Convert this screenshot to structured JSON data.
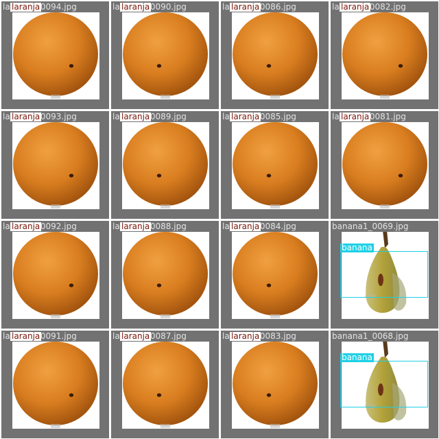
{
  "colors": {
    "tile_background": "#727272",
    "orange_label_text": "#7a1608",
    "banana_box": "#1ed0e6"
  },
  "tiles": [
    {
      "filename": "laranja1_0094.jpg",
      "label": "laranja",
      "kind": "orange"
    },
    {
      "filename": "laranja1_0090.jpg",
      "label": "laranja",
      "kind": "orange"
    },
    {
      "filename": "laranja1_0086.jpg",
      "label": "laranja",
      "kind": "orange"
    },
    {
      "filename": "laranja1_0082.jpg",
      "label": "laranja",
      "kind": "orange"
    },
    {
      "filename": "laranja1_0093.jpg",
      "label": "laranja",
      "kind": "orange"
    },
    {
      "filename": "laranja1_0089.jpg",
      "label": "laranja",
      "kind": "orange"
    },
    {
      "filename": "laranja1_0085.jpg",
      "label": "laranja",
      "kind": "orange"
    },
    {
      "filename": "laranja1_0081.jpg",
      "label": "laranja",
      "kind": "orange"
    },
    {
      "filename": "laranja1_0092.jpg",
      "label": "laranja",
      "kind": "orange"
    },
    {
      "filename": "laranja1_0088.jpg",
      "label": "laranja",
      "kind": "orange"
    },
    {
      "filename": "laranja1_0084.jpg",
      "label": "laranja",
      "kind": "orange"
    },
    {
      "filename": "banana1_0069.jpg",
      "label": "banana",
      "kind": "banana"
    },
    {
      "filename": "laranja1_0091.jpg",
      "label": "laranja",
      "kind": "orange"
    },
    {
      "filename": "laranja1_0087.jpg",
      "label": "laranja",
      "kind": "orange"
    },
    {
      "filename": "laranja1_0083.jpg",
      "label": "laranja",
      "kind": "orange"
    },
    {
      "filename": "banana1_0068.jpg",
      "label": "banana",
      "kind": "banana"
    }
  ]
}
